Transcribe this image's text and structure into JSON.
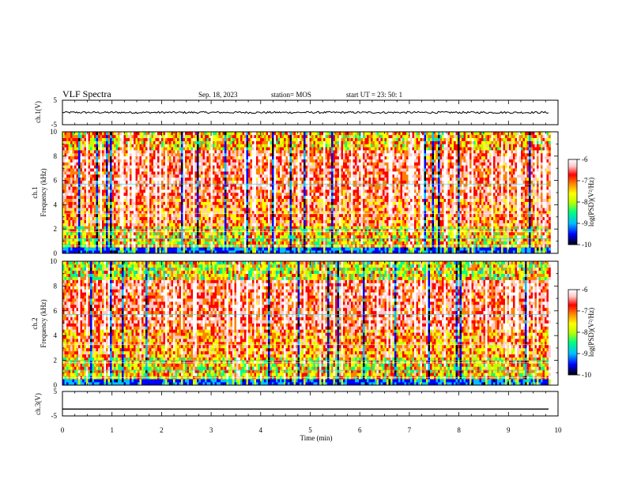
{
  "header": {
    "title": "VLF Spectra",
    "date": "Sep. 18, 2023",
    "station": "station= MOS",
    "start_ut": "start  UT =   23: 50: 1"
  },
  "chart_data": [
    {
      "type": "line",
      "name": "ch1-waveform",
      "ylabel": "ch.1(V)",
      "ylim": [
        -5,
        5
      ],
      "y_ticks": [
        "5",
        "-5"
      ],
      "mean_level": 0,
      "noise_amplitude": 0.4
    },
    {
      "type": "heatmap",
      "name": "ch1-spectrogram",
      "ylabel": "ch.1\nFrequency (kHz)",
      "ylim": [
        0,
        10
      ],
      "y_ticks": [
        "0",
        "2",
        "4",
        "6",
        "8",
        "10"
      ],
      "data_end_minute": 9.82,
      "colorbar": {
        "label": "log(PSD)(V²/Hz)",
        "range": [
          -10,
          -6
        ],
        "ticks": [
          "-6",
          "-7",
          "-8",
          "-9",
          "-10"
        ]
      }
    },
    {
      "type": "heatmap",
      "name": "ch2-spectrogram",
      "ylabel": "ch.2\nFrequency (kHz)",
      "ylim": [
        0,
        10
      ],
      "y_ticks": [
        "0",
        "2",
        "4",
        "6",
        "8",
        "10"
      ],
      "data_end_minute": 9.82,
      "colorbar": {
        "label": "log(PSD)(V²/Hz)",
        "range": [
          -10,
          -6
        ],
        "ticks": [
          "-6",
          "-7",
          "-8",
          "-9",
          "-10"
        ]
      }
    },
    {
      "type": "line",
      "name": "ch3-waveform",
      "ylabel": "ch.3(V)",
      "ylim": [
        -5,
        5
      ],
      "y_ticks": [
        "5",
        "-5"
      ],
      "mean_level": -2.2,
      "noise_amplitude": 0
    }
  ],
  "x_axis": {
    "label": "Time (min)",
    "range": [
      0,
      10
    ],
    "ticks": [
      "0",
      "1",
      "2",
      "3",
      "4",
      "5",
      "6",
      "7",
      "8",
      "9",
      "10"
    ]
  },
  "colors": {
    "scale": [
      "#000000",
      "#0000ff",
      "#00c0ff",
      "#00ff80",
      "#c0ff00",
      "#ffff00",
      "#ff8000",
      "#ff0000",
      "#ffc8c8",
      "#ffffff"
    ]
  }
}
